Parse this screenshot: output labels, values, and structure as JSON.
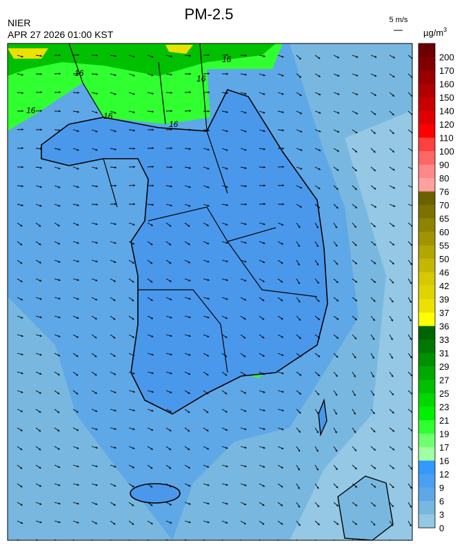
{
  "header": {
    "title": "PM-2.5",
    "agency": "NIER",
    "timestamp": "APR 27 2026 01:00 KST",
    "wind_scale": "5 m/s",
    "unit": "µg/m",
    "unit_power": "3"
  },
  "contour_labels": [
    "16",
    "16",
    "16",
    "16",
    "16",
    "16"
  ],
  "colorbar": {
    "levels": [
      200,
      170,
      160,
      150,
      140,
      120,
      110,
      100,
      90,
      80,
      76,
      70,
      65,
      60,
      55,
      50,
      46,
      42,
      39,
      37,
      36,
      33,
      31,
      29,
      27,
      25,
      23,
      21,
      19,
      17,
      16,
      12,
      9,
      6,
      3,
      0
    ],
    "colors": [
      "#6b0000",
      "#800000",
      "#990000",
      "#b00000",
      "#c80000",
      "#e00000",
      "#ff0000",
      "#ff4040",
      "#ff6666",
      "#ff8888",
      "#ffa0a0",
      "#6b6100",
      "#7d7200",
      "#8f8400",
      "#a19400",
      "#b3a600",
      "#c5b700",
      "#d7c900",
      "#e0d400",
      "#eee000",
      "#ffff00",
      "#006400",
      "#007800",
      "#009000",
      "#00a800",
      "#00c000",
      "#00d800",
      "#00f000",
      "#30ff30",
      "#70ff70",
      "#a0ffa0",
      "#3399ff",
      "#4aa0f0",
      "#5ea8e8",
      "#78b8e0",
      "#94c8e4"
    ]
  }
}
